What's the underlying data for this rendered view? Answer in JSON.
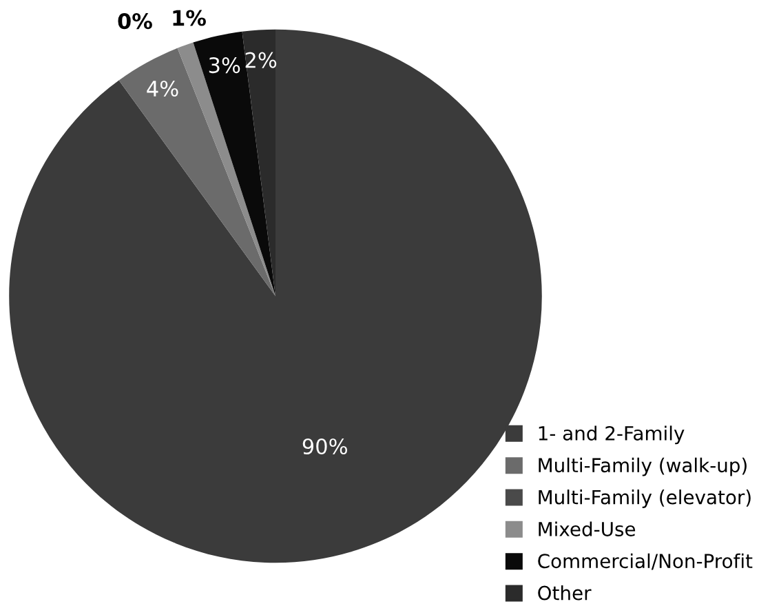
{
  "chart_data": {
    "type": "pie",
    "categories": [
      "1- and 2-Family",
      "Multi-Family (walk-up)",
      "Multi-Family (elevator)",
      "Mixed-Use",
      "Commercial/Non-Profit",
      "Other"
    ],
    "values": [
      90,
      4,
      0,
      1,
      3,
      2
    ],
    "colors": [
      "#3b3b3b",
      "#6b6b6b",
      "#4a4a4a",
      "#8c8c8c",
      "#0a0a0a",
      "#2b2b2b"
    ],
    "value_labels": [
      "90%",
      "4%",
      "0%",
      "1%",
      "3%",
      "2%"
    ],
    "legend": "bottom right"
  }
}
